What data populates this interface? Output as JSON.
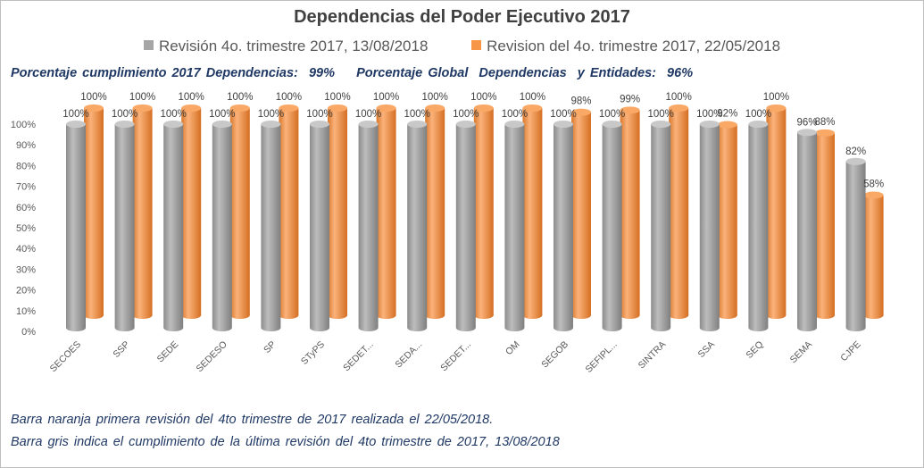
{
  "chart_data": {
    "type": "bar",
    "title": "Dependencias del Poder Ejecutivo 2017",
    "categories": [
      "SECOES",
      "SSP",
      "SEDE",
      "SEDESO",
      "SP",
      "STyPS",
      "SEDET...",
      "SEDA...",
      "SEDET...",
      "OM",
      "SEGOB",
      "SEFIPL...",
      "SINTRA",
      "SSA",
      "SEQ",
      "SEMA",
      "CJPE"
    ],
    "series": [
      {
        "name": "Revisión 4o. trimestre 2017, 13/08/2018",
        "color": "#a6a6a6",
        "values": [
          100,
          100,
          100,
          100,
          100,
          100,
          100,
          100,
          100,
          100,
          100,
          100,
          100,
          100,
          100,
          96,
          82
        ]
      },
      {
        "name": "Revision del 4o. trimestre 2017, 22/05/2018",
        "color": "#f79646",
        "values": [
          100,
          100,
          100,
          100,
          100,
          100,
          100,
          100,
          100,
          100,
          98,
          99,
          100,
          92,
          100,
          88,
          58
        ]
      }
    ],
    "yticks": [
      "0%",
      "10%",
      "20%",
      "30%",
      "40%",
      "50%",
      "60%",
      "70%",
      "80%",
      "90%",
      "100%"
    ],
    "ylim": [
      0,
      100
    ],
    "legend_position": "top",
    "grid": false
  },
  "summary": "Porcentaje cumplimiento 2017 Dependencias:  99%    Porcentaje Global  Dependencias  y Entidades:  96%",
  "notes": [
    "Barra naranja primera revisión del 4to trimestre de 2017 realizada el 22/05/2018.",
    "Barra gris indica el cumplimiento de la última revisión del 4to trimestre de 2017,  13/08/2018"
  ]
}
